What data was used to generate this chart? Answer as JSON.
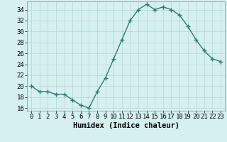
{
  "x": [
    0,
    1,
    2,
    3,
    4,
    5,
    6,
    7,
    8,
    9,
    10,
    11,
    12,
    13,
    14,
    15,
    16,
    17,
    18,
    19,
    20,
    21,
    22,
    23
  ],
  "y": [
    20,
    19,
    19,
    18.5,
    18.5,
    17.5,
    16.5,
    16,
    19,
    21.5,
    25,
    28.5,
    32,
    34,
    35,
    34,
    34.5,
    34,
    33,
    31,
    28.5,
    26.5,
    25,
    24.5
  ],
  "line_color": "#2d7d6e",
  "marker": "+",
  "marker_color": "#2d7d6e",
  "bg_color": "#d6f0f0",
  "grid_color": "#b8dada",
  "xlabel": "Humidex (Indice chaleur)",
  "xlim": [
    -0.5,
    23.5
  ],
  "ylim": [
    15.5,
    35.5
  ],
  "yticks": [
    16,
    18,
    20,
    22,
    24,
    26,
    28,
    30,
    32,
    34
  ],
  "xticks": [
    0,
    1,
    2,
    3,
    4,
    5,
    6,
    7,
    8,
    9,
    10,
    11,
    12,
    13,
    14,
    15,
    16,
    17,
    18,
    19,
    20,
    21,
    22,
    23
  ],
  "xlabel_fontsize": 7.5,
  "tick_fontsize": 6.5,
  "line_width": 1.0,
  "marker_size": 4
}
